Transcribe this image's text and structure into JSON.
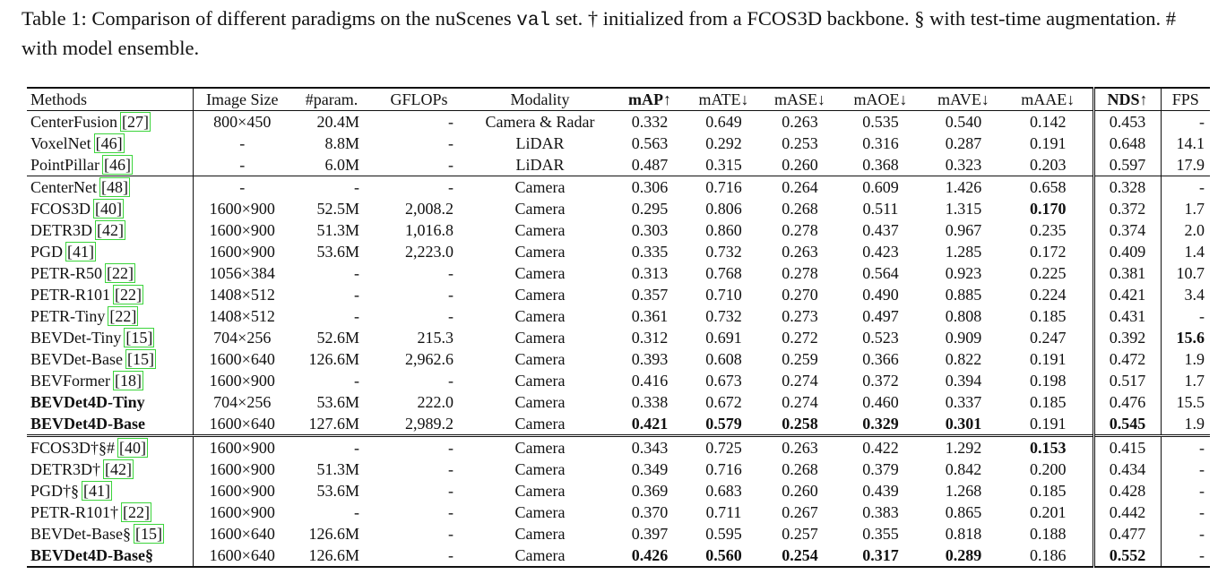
{
  "caption": {
    "prefix": "Table 1: Comparison of different paradigms on the nuScenes",
    "code": "val",
    "suffix": "set. † initialized from a FCOS3D backbone. § with test-time augmentation. # with model ensemble."
  },
  "table": {
    "header": [
      "Methods",
      "Image Size",
      "#param.",
      "GFLOPs",
      "Modality",
      "mAP↑",
      "mATE↓",
      "mASE↓",
      "mAOE↓",
      "mAVE↓",
      "mAAE↓",
      "NDS↑",
      "FPS"
    ],
    "header_bold": [
      5,
      11
    ],
    "groups": [
      {
        "rows": [
          {
            "method": "CenterFusion",
            "cite": "[27]",
            "cells": [
              "800×450",
              "20.4M",
              "-",
              "Camera & Radar",
              "0.332",
              "0.649",
              "0.263",
              "0.535",
              "0.540",
              "0.142",
              "0.453",
              "-"
            ]
          },
          {
            "method": "VoxelNet",
            "cite": "[46]",
            "cells": [
              "-",
              "8.8M",
              "-",
              "LiDAR",
              "0.563",
              "0.292",
              "0.253",
              "0.316",
              "0.287",
              "0.191",
              "0.648",
              "14.1"
            ]
          },
          {
            "method": "PointPillar",
            "cite": "[46]",
            "cells": [
              "-",
              "6.0M",
              "-",
              "LiDAR",
              "0.487",
              "0.315",
              "0.260",
              "0.368",
              "0.323",
              "0.203",
              "0.597",
              "17.9"
            ]
          }
        ]
      },
      {
        "rows": [
          {
            "method": "CenterNet",
            "cite": "[48]",
            "cells": [
              "-",
              "-",
              "-",
              "Camera",
              "0.306",
              "0.716",
              "0.264",
              "0.609",
              "1.426",
              "0.658",
              "0.328",
              "-"
            ]
          },
          {
            "method": "FCOS3D",
            "cite": "[40]",
            "cells": [
              "1600×900",
              "52.5M",
              "2,008.2",
              "Camera",
              "0.295",
              "0.806",
              "0.268",
              "0.511",
              "1.315",
              "0.170",
              "0.372",
              "1.7"
            ],
            "bold": [
              10
            ]
          },
          {
            "method": "DETR3D",
            "cite": "[42]",
            "cells": [
              "1600×900",
              "51.3M",
              "1,016.8",
              "Camera",
              "0.303",
              "0.860",
              "0.278",
              "0.437",
              "0.967",
              "0.235",
              "0.374",
              "2.0"
            ]
          },
          {
            "method": "PGD",
            "cite": "[41]",
            "cells": [
              "1600×900",
              "53.6M",
              "2,223.0",
              "Camera",
              "0.335",
              "0.732",
              "0.263",
              "0.423",
              "1.285",
              "0.172",
              "0.409",
              "1.4"
            ]
          },
          {
            "method": "PETR-R50",
            "cite": "[22]",
            "cells": [
              "1056×384",
              "-",
              "-",
              "Camera",
              "0.313",
              "0.768",
              "0.278",
              "0.564",
              "0.923",
              "0.225",
              "0.381",
              "10.7"
            ]
          },
          {
            "method": "PETR-R101",
            "cite": "[22]",
            "cells": [
              "1408×512",
              "-",
              "-",
              "Camera",
              "0.357",
              "0.710",
              "0.270",
              "0.490",
              "0.885",
              "0.224",
              "0.421",
              "3.4"
            ]
          },
          {
            "method": "PETR-Tiny",
            "cite": "[22]",
            "cells": [
              "1408×512",
              "-",
              "-",
              "Camera",
              "0.361",
              "0.732",
              "0.273",
              "0.497",
              "0.808",
              "0.185",
              "0.431",
              "-"
            ]
          },
          {
            "method": "BEVDet-Tiny",
            "cite": "[15]",
            "cells": [
              "704×256",
              "52.6M",
              "215.3",
              "Camera",
              "0.312",
              "0.691",
              "0.272",
              "0.523",
              "0.909",
              "0.247",
              "0.392",
              "15.6"
            ],
            "bold": [
              12
            ]
          },
          {
            "method": "BEVDet-Base",
            "cite": "[15]",
            "cells": [
              "1600×640",
              "126.6M",
              "2,962.6",
              "Camera",
              "0.393",
              "0.608",
              "0.259",
              "0.366",
              "0.822",
              "0.191",
              "0.472",
              "1.9"
            ]
          },
          {
            "method": "BEVFormer",
            "cite": "[18]",
            "cells": [
              "1600×900",
              "-",
              "-",
              "Camera",
              "0.416",
              "0.673",
              "0.274",
              "0.372",
              "0.394",
              "0.198",
              "0.517",
              "1.7"
            ]
          },
          {
            "method": "BEVDet4D-Tiny",
            "cells": [
              "704×256",
              "53.6M",
              "222.0",
              "Camera",
              "0.338",
              "0.672",
              "0.274",
              "0.460",
              "0.337",
              "0.185",
              "0.476",
              "15.5"
            ],
            "bold": [
              0
            ]
          },
          {
            "method": "BEVDet4D-Base",
            "cells": [
              "1600×640",
              "127.6M",
              "2,989.2",
              "Camera",
              "0.421",
              "0.579",
              "0.258",
              "0.329",
              "0.301",
              "0.191",
              "0.545",
              "1.9"
            ],
            "bold": [
              0,
              5,
              6,
              7,
              8,
              9,
              11
            ]
          }
        ]
      },
      {
        "rows": [
          {
            "method": "FCOS3D†§#",
            "cite": "[40]",
            "cells": [
              "1600×900",
              "-",
              "-",
              "Camera",
              "0.343",
              "0.725",
              "0.263",
              "0.422",
              "1.292",
              "0.153",
              "0.415",
              "-"
            ],
            "bold": [
              10
            ]
          },
          {
            "method": "DETR3D†",
            "cite": "[42]",
            "cells": [
              "1600×900",
              "51.3M",
              "-",
              "Camera",
              "0.349",
              "0.716",
              "0.268",
              "0.379",
              "0.842",
              "0.200",
              "0.434",
              "-"
            ]
          },
          {
            "method": "PGD†§",
            "cite": "[41]",
            "cells": [
              "1600×900",
              "53.6M",
              "-",
              "Camera",
              "0.369",
              "0.683",
              "0.260",
              "0.439",
              "1.268",
              "0.185",
              "0.428",
              "-"
            ]
          },
          {
            "method": "PETR-R101†",
            "cite": "[22]",
            "cells": [
              "1600×900",
              "-",
              "-",
              "Camera",
              "0.370",
              "0.711",
              "0.267",
              "0.383",
              "0.865",
              "0.201",
              "0.442",
              "-"
            ]
          },
          {
            "method": "BEVDet-Base§",
            "cite": "[15]",
            "cells": [
              "1600×640",
              "126.6M",
              "-",
              "Camera",
              "0.397",
              "0.595",
              "0.257",
              "0.355",
              "0.818",
              "0.188",
              "0.477",
              "-"
            ]
          },
          {
            "method": "BEVDet4D-Base§",
            "cells": [
              "1600×640",
              "126.6M",
              "-",
              "Camera",
              "0.426",
              "0.560",
              "0.254",
              "0.317",
              "0.289",
              "0.186",
              "0.552",
              "-"
            ],
            "bold": [
              0,
              5,
              6,
              7,
              8,
              9,
              11
            ]
          }
        ]
      }
    ]
  }
}
